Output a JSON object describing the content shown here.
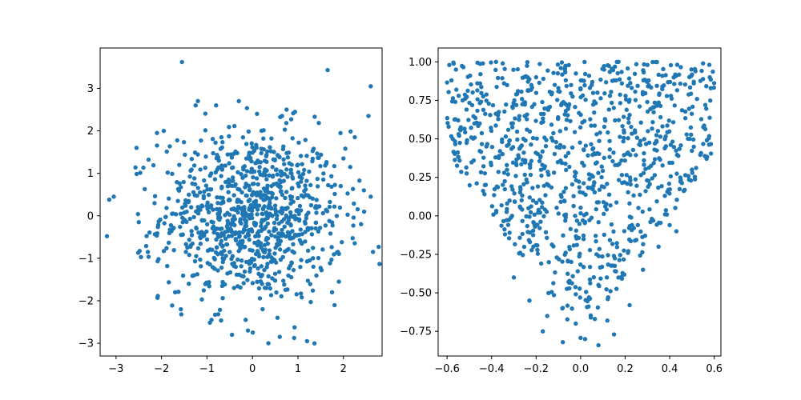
{
  "chart_data": [
    {
      "type": "scatter",
      "title": "",
      "xlabel": "",
      "ylabel": "",
      "xlim": [
        -3.35,
        2.85
      ],
      "ylim": [
        -3.3,
        3.95
      ],
      "xticks": [
        -3,
        -2,
        -1,
        0,
        1,
        2
      ],
      "yticks": [
        -3,
        -2,
        -1,
        0,
        1,
        2,
        3
      ],
      "grid": false,
      "color": "#1f77b4",
      "distribution": "bivariate normal, mean (0,0), std ~1, n ~1000",
      "points": [
        [
          -1.55,
          3.62
        ],
        [
          2.6,
          3.05
        ],
        [
          2.55,
          2.35
        ],
        [
          -3.15,
          0.38
        ],
        [
          -3.05,
          0.45
        ],
        [
          -3.2,
          -0.48
        ],
        [
          -2.5,
          -0.15
        ],
        [
          -2.3,
          -0.85
        ],
        [
          -2.1,
          1.95
        ],
        [
          -1.95,
          2.0
        ],
        [
          -2.55,
          1.6
        ],
        [
          1.2,
          -2.95
        ],
        [
          0.35,
          -3.0
        ],
        [
          -0.45,
          -2.8
        ],
        [
          0.6,
          -2.85
        ],
        [
          -0.1,
          -2.7
        ],
        [
          2.0,
          1.35
        ],
        [
          2.25,
          1.85
        ],
        [
          2.65,
          -0.85
        ],
        [
          2.6,
          0.45
        ],
        [
          -1.25,
          2.6
        ],
        [
          -1.2,
          2.7
        ],
        [
          -0.8,
          2.6
        ],
        [
          -0.3,
          2.7
        ],
        [
          0.75,
          2.5
        ],
        [
          0.65,
          2.35
        ],
        [
          0.1,
          2.4
        ],
        [
          -1.7,
          -1.8
        ],
        [
          -1.4,
          -1.6
        ],
        [
          1.75,
          -1.8
        ],
        [
          1.9,
          -1.55
        ],
        [
          -0.15,
          -2.45
        ],
        [
          0.55,
          -2.4
        ],
        [
          -0.9,
          -2.45
        ],
        [
          2.15,
          1.15
        ],
        [
          2.45,
          0.6
        ]
      ]
    },
    {
      "type": "scatter",
      "title": "",
      "xlabel": "",
      "ylabel": "",
      "xlim": [
        -0.64,
        0.63
      ],
      "ylim": [
        -0.91,
        1.09
      ],
      "xticks": [
        -0.6,
        -0.4,
        -0.2,
        0.0,
        0.2,
        0.4,
        0.6
      ],
      "yticks": [
        -0.75,
        -0.5,
        -0.25,
        0.0,
        0.25,
        0.5,
        0.75,
        1.0
      ],
      "grid": false,
      "color": "#1f77b4",
      "distribution": "uniform within V-shaped region, n ~1000",
      "points": [
        [
          -0.59,
          0.98
        ],
        [
          -0.56,
          0.95
        ],
        [
          -0.38,
          1.0
        ],
        [
          -0.35,
          0.99
        ],
        [
          0.17,
          1.0
        ],
        [
          0.55,
          0.99
        ],
        [
          0.58,
          0.9
        ],
        [
          0.3,
          0.98
        ],
        [
          -0.58,
          0.88
        ],
        [
          -0.45,
          0.92
        ],
        [
          0.08,
          -0.84
        ],
        [
          0.02,
          -0.8
        ],
        [
          -0.08,
          -0.82
        ],
        [
          0.15,
          -0.77
        ],
        [
          -0.17,
          -0.75
        ],
        [
          0.12,
          -0.68
        ],
        [
          -0.15,
          -0.65
        ],
        [
          -0.53,
          0.75
        ],
        [
          -0.55,
          0.62
        ],
        [
          -0.48,
          0.36
        ],
        [
          -0.43,
          0.2
        ],
        [
          -0.34,
          -0.12
        ],
        [
          0.43,
          -0.1
        ],
        [
          0.5,
          0.3
        ],
        [
          0.56,
          0.72
        ],
        [
          0.4,
          -0.06
        ],
        [
          0.35,
          -0.2
        ],
        [
          0.28,
          -0.35
        ],
        [
          -0.3,
          -0.4
        ],
        [
          -0.23,
          -0.55
        ],
        [
          0.22,
          -0.58
        ],
        [
          0.05,
          0.85
        ],
        [
          -0.1,
          0.83
        ],
        [
          0.15,
          0.88
        ],
        [
          -0.2,
          0.9
        ]
      ]
    }
  ]
}
